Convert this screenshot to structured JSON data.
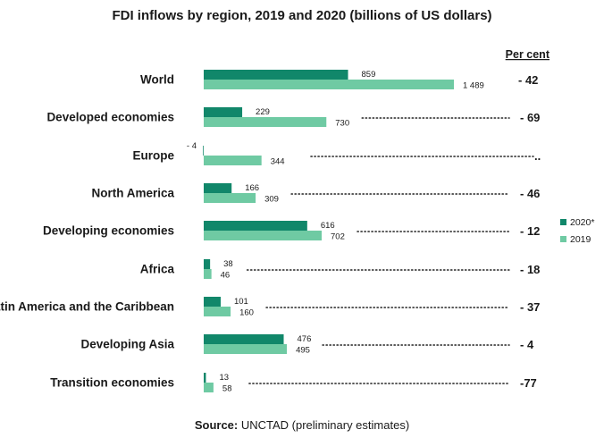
{
  "title": "FDI inflows by region, 2019 and 2020 (billions of US dollars)",
  "source_label": "Source:",
  "source_text": "UNCTAD (preliminary estimates)",
  "percent_header": "Per cent",
  "colors": {
    "series_2020": "#11876a",
    "series_2019": "#6fcaa3",
    "dots": "#222222"
  },
  "chart_data": {
    "type": "bar",
    "orientation": "horizontal",
    "title": "FDI inflows by region, 2019 and 2020 (billions of US dollars)",
    "categories": [
      "World",
      "Developed economies",
      "Europe",
      "North America",
      "Developing economies",
      "Africa",
      "Latin America and the Caribbean",
      "Developing Asia",
      "Transition economies"
    ],
    "series": [
      {
        "name": "2020*",
        "values": [
          859,
          229,
          -4,
          166,
          616,
          38,
          101,
          476,
          13
        ]
      },
      {
        "name": "2019",
        "values": [
          1489,
          730,
          344,
          309,
          702,
          46,
          160,
          495,
          58
        ]
      }
    ],
    "value_labels": {
      "2020*": [
        "859",
        "229",
        "- 4",
        "166",
        "616",
        "38",
        "101",
        "476",
        "13"
      ],
      "2019": [
        "1 489",
        "730",
        "344",
        "309",
        "702",
        "46",
        "160",
        "495",
        "58"
      ]
    },
    "percent_change": [
      "- 42",
      "- 69",
      "..",
      "- 46",
      "- 12",
      "- 18",
      "- 37",
      "- 4",
      "-77"
    ],
    "legend": {
      "position": "right",
      "entries": [
        "2020*",
        "2019"
      ]
    },
    "grid": false
  }
}
